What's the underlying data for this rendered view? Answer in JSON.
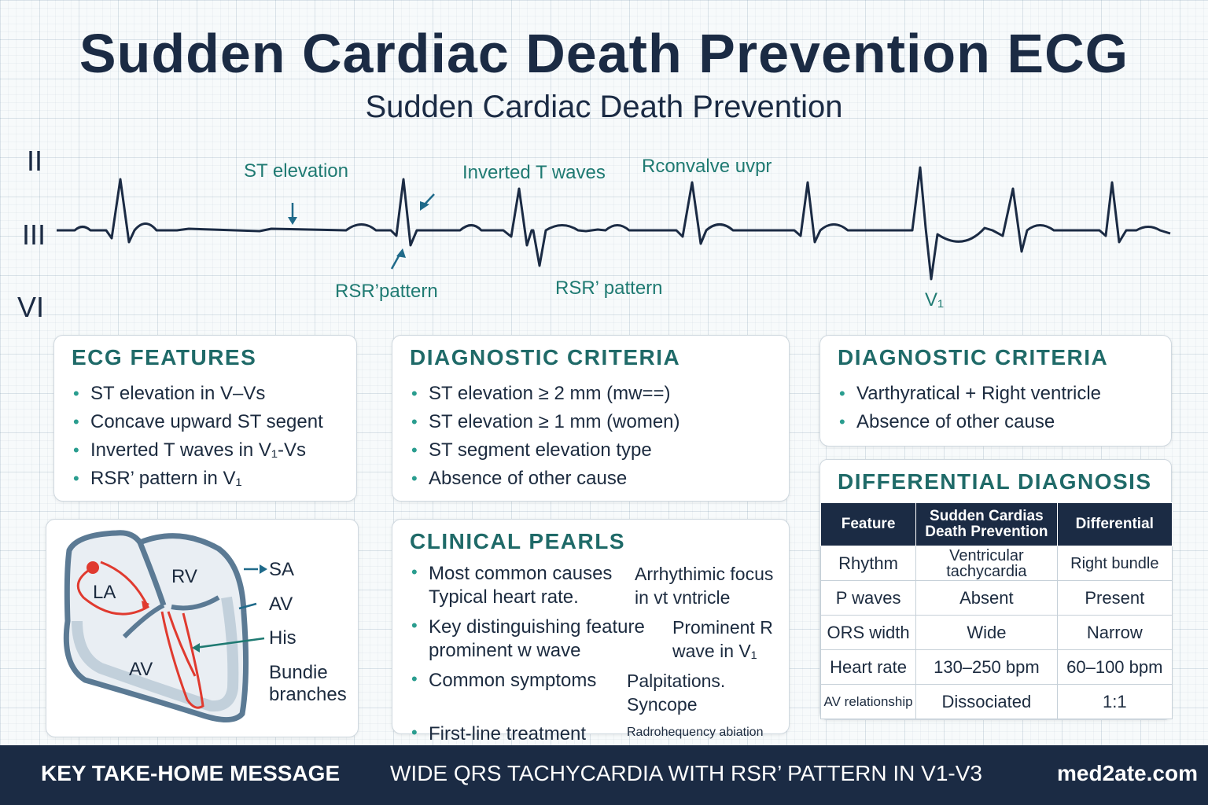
{
  "header": {
    "title": "Sudden Cardiac Death Prevention ECG",
    "subtitle": "Sudden Cardiac Death Prevention"
  },
  "ecg": {
    "leads": [
      "II",
      "III",
      "VI"
    ],
    "annotations": {
      "st_elevation": "ST elevation",
      "inverted_t": "Inverted T waves",
      "rconvalve": "Rconvalve uvpr",
      "rsr_1": "RSR’pattern",
      "rsr_2": "RSR’ pattern",
      "v1": "V₁"
    },
    "trace_color": "#1b2b44",
    "annotation_color": "#1f7a72"
  },
  "ecg_features": {
    "heading": "ECG FEATURES",
    "items": [
      "ST elevation in V–Vs",
      "Concave upward ST segent",
      "Inverted T waves in V₁-Vs",
      "RSR’ pattern in V₁"
    ]
  },
  "diagnostic_criteria_1": {
    "heading": "DIAGNOSTIC CRITERIA",
    "items": [
      "ST elevation ≥ 2 mm        (mw==)",
      "ST elevation ≥ 1 mm (women)",
      "ST segment elevation type",
      "Absence of other cause"
    ]
  },
  "diagnostic_criteria_2": {
    "heading": "DIAGNOSTIC CRITERIA",
    "items": [
      "Varthyratical + Right ventricle",
      "Absence of other cause"
    ]
  },
  "clinical_pearls": {
    "heading": "CLINICAL PEARLS",
    "items": [
      {
        "left": "Most common causes Typical heart rate.",
        "right": "Arrhythimic focus in vt vntricle",
        "note": ""
      },
      {
        "left": "Key distinguishing feature prominent w wave",
        "right": "Prominent R wave in V₁",
        "note": ""
      },
      {
        "left": "Common symptoms",
        "right": "Palpitations. Syncope",
        "note": ""
      },
      {
        "left": "First-line treatment",
        "right": "",
        "note": "Radrohequency abiation"
      }
    ]
  },
  "differential": {
    "heading": "DIFFERENTIAL DIAGNOSIS",
    "columns": [
      "Feature",
      "Sudden Cardias Death Prevention",
      "Differential"
    ],
    "rows": [
      [
        "Rhythm",
        "Ventricular tachycardia",
        "Right bundle"
      ],
      [
        "P waves",
        "Absent",
        "Present"
      ],
      [
        "ORS width",
        "Wide",
        "Narrow"
      ],
      [
        "Heart rate",
        "130–250 bpm",
        "60–100 bpm"
      ],
      [
        "AV relationship",
        "Dissociated",
        "1:1"
      ]
    ]
  },
  "heart": {
    "labels": {
      "la": "LA",
      "rv": "RV",
      "av_chamber": "AV",
      "sa": "SA",
      "av": "AV",
      "his": "His",
      "bundle": "Bundie branches"
    },
    "wall_color": "#5b7a94",
    "conduction_color": "#e03a2f",
    "pointer_color": "#1f6a8a"
  },
  "footer": {
    "key_label": "KEY TAKE-HOME MESSAGE",
    "message": "WIDE QRS TACHYCARDIA WITH RSR’ PATTERN IN V1-V3",
    "site": "med2ate.com"
  }
}
